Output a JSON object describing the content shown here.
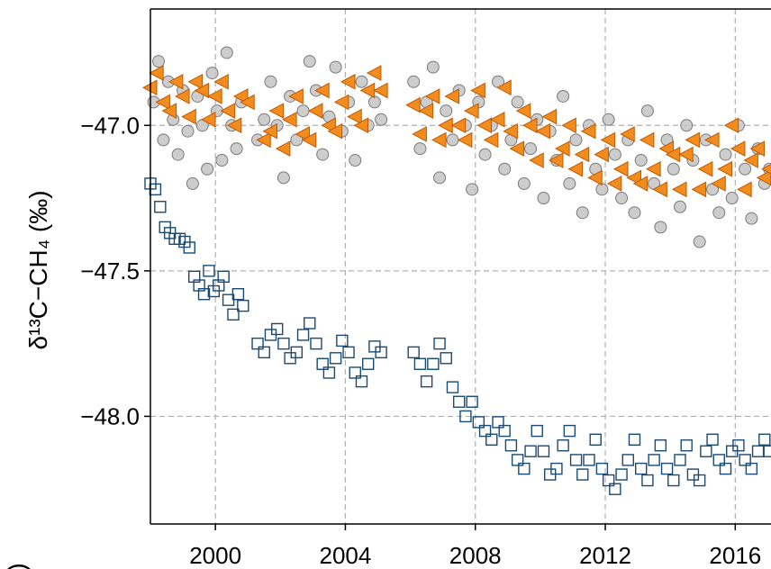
{
  "chart_data": {
    "type": "scatter",
    "title": "",
    "xlabel": "",
    "ylabel": "δ¹³C−CH₄ (‰)",
    "xlim": [
      1998.0,
      2017.1
    ],
    "ylim": [
      -48.37,
      -46.6
    ],
    "grid": true,
    "x_ticks": [
      2000,
      2004,
      2008,
      2012,
      2016
    ],
    "x_tick_labels": [
      "2000",
      "2004",
      "2008",
      "2012",
      "2016"
    ],
    "y_ticks": [
      -47.0,
      -47.5,
      -48.0
    ],
    "y_tick_labels": [
      "−47.0",
      "−47.5",
      "−48.0"
    ],
    "series": [
      {
        "marker": "circle",
        "color": "#c8c8c8",
        "edge": "#7a7a7a",
        "x": [
          1998.1,
          1998.25,
          1998.4,
          1998.55,
          1998.7,
          1998.85,
          1999.0,
          1999.15,
          1999.3,
          1999.45,
          1999.6,
          1999.75,
          1999.9,
          2000.05,
          2000.2,
          2000.35,
          2000.5,
          2000.65,
          2000.8,
          2001.3,
          2001.5,
          2001.7,
          2001.9,
          2002.1,
          2002.3,
          2002.5,
          2002.7,
          2002.9,
          2003.1,
          2003.3,
          2003.5,
          2003.7,
          2003.9,
          2004.1,
          2004.3,
          2004.5,
          2004.7,
          2004.9,
          2005.1,
          2006.1,
          2006.3,
          2006.5,
          2006.7,
          2006.9,
          2007.1,
          2007.3,
          2007.5,
          2007.7,
          2007.9,
          2008.1,
          2008.3,
          2008.5,
          2008.7,
          2008.9,
          2009.1,
          2009.3,
          2009.5,
          2009.7,
          2009.9,
          2010.1,
          2010.3,
          2010.5,
          2010.7,
          2010.9,
          2011.1,
          2011.3,
          2011.5,
          2011.7,
          2011.9,
          2012.1,
          2012.3,
          2012.5,
          2012.7,
          2012.9,
          2013.1,
          2013.3,
          2013.5,
          2013.7,
          2013.9,
          2014.1,
          2014.3,
          2014.5,
          2014.7,
          2014.9,
          2015.1,
          2015.3,
          2015.5,
          2015.7,
          2015.9,
          2016.1,
          2016.3,
          2016.5,
          2016.7,
          2016.9,
          2017.05
        ],
        "y": [
          -46.92,
          -46.78,
          -47.05,
          -46.85,
          -46.98,
          -47.1,
          -46.88,
          -47.02,
          -47.2,
          -46.9,
          -47.0,
          -47.15,
          -46.82,
          -46.95,
          -47.12,
          -46.75,
          -47.0,
          -47.08,
          -46.92,
          -47.05,
          -46.98,
          -46.85,
          -47.0,
          -47.18,
          -46.9,
          -47.05,
          -46.95,
          -46.78,
          -46.88,
          -47.1,
          -46.97,
          -46.8,
          -47.02,
          -46.92,
          -47.12,
          -46.85,
          -47.0,
          -46.92,
          -46.98,
          -46.85,
          -47.08,
          -46.92,
          -46.8,
          -47.18,
          -46.95,
          -47.05,
          -46.88,
          -47.0,
          -47.22,
          -46.92,
          -47.1,
          -47.0,
          -46.85,
          -47.15,
          -47.05,
          -46.92,
          -47.2,
          -47.08,
          -46.98,
          -47.25,
          -47.02,
          -47.12,
          -46.9,
          -47.2,
          -47.05,
          -47.3,
          -47.0,
          -47.15,
          -47.22,
          -46.98,
          -47.1,
          -47.25,
          -47.05,
          -47.3,
          -47.12,
          -46.95,
          -47.2,
          -47.35,
          -47.05,
          -47.15,
          -47.28,
          -47.0,
          -47.12,
          -47.4,
          -47.05,
          -47.22,
          -47.3,
          -47.1,
          -47.25,
          -47.0,
          -47.15,
          -47.32,
          -47.08,
          -47.2,
          -47.15
        ]
      },
      {
        "marker": "triangle-left",
        "color": "#f28c1e",
        "edge": "#c05a00",
        "x": [
          1998.0,
          1998.2,
          1998.4,
          1998.6,
          1998.8,
          1999.0,
          1999.2,
          1999.4,
          1999.6,
          1999.8,
          2000.0,
          2000.2,
          2000.4,
          2000.6,
          2000.8,
          2001.0,
          2001.5,
          2001.7,
          2001.9,
          2002.1,
          2002.3,
          2002.5,
          2002.7,
          2002.9,
          2003.1,
          2003.3,
          2003.5,
          2003.7,
          2003.9,
          2004.1,
          2004.3,
          2004.5,
          2004.7,
          2004.9,
          2005.1,
          2006.1,
          2006.3,
          2006.5,
          2006.7,
          2006.9,
          2007.1,
          2007.3,
          2007.5,
          2007.7,
          2007.9,
          2008.1,
          2008.3,
          2008.5,
          2008.7,
          2008.9,
          2009.1,
          2009.3,
          2009.5,
          2009.7,
          2009.9,
          2010.1,
          2010.3,
          2010.5,
          2010.7,
          2010.9,
          2011.1,
          2011.3,
          2011.5,
          2011.7,
          2011.9,
          2012.1,
          2012.3,
          2012.5,
          2012.7,
          2012.9,
          2013.1,
          2013.3,
          2013.5,
          2013.7,
          2013.9,
          2014.1,
          2014.3,
          2014.5,
          2014.7,
          2014.9,
          2015.1,
          2015.3,
          2015.5,
          2015.7,
          2015.9,
          2016.1,
          2016.3,
          2016.5,
          2016.7,
          2016.9,
          2017.05
        ],
        "y": [
          -46.87,
          -46.82,
          -46.92,
          -46.95,
          -46.85,
          -46.9,
          -46.97,
          -46.85,
          -46.88,
          -46.98,
          -46.9,
          -46.85,
          -46.95,
          -47.0,
          -46.9,
          -46.92,
          -47.05,
          -47.02,
          -46.95,
          -47.08,
          -46.98,
          -46.9,
          -47.03,
          -47.05,
          -46.95,
          -46.88,
          -47.0,
          -47.02,
          -46.92,
          -46.85,
          -46.97,
          -47.0,
          -46.88,
          -46.82,
          -46.88,
          -46.93,
          -47.03,
          -46.95,
          -46.9,
          -47.05,
          -47.0,
          -46.9,
          -47.0,
          -47.05,
          -46.95,
          -46.88,
          -47.0,
          -47.05,
          -46.98,
          -46.87,
          -47.02,
          -47.08,
          -46.95,
          -47.0,
          -47.12,
          -47.02,
          -46.97,
          -47.12,
          -47.08,
          -47.0,
          -47.15,
          -47.1,
          -47.02,
          -47.18,
          -47.1,
          -47.05,
          -47.2,
          -47.15,
          -47.03,
          -47.18,
          -47.2,
          -47.05,
          -47.15,
          -47.22,
          -47.08,
          -47.1,
          -47.22,
          -47.1,
          -47.05,
          -47.22,
          -47.15,
          -47.05,
          -47.2,
          -47.15,
          -47.0,
          -47.08,
          -47.22,
          -47.12,
          -47.08,
          -47.18,
          -47.15
        ]
      },
      {
        "marker": "square-open",
        "color": "#1a4a72",
        "x": [
          1998.0,
          1998.15,
          1998.3,
          1998.45,
          1998.6,
          1998.75,
          1998.9,
          1999.05,
          1999.2,
          1999.35,
          1999.5,
          1999.65,
          1999.8,
          1999.95,
          2000.1,
          2000.25,
          2000.4,
          2000.55,
          2000.7,
          2000.85,
          2001.3,
          2001.5,
          2001.7,
          2001.9,
          2002.1,
          2002.3,
          2002.5,
          2002.7,
          2002.9,
          2003.1,
          2003.3,
          2003.5,
          2003.7,
          2003.9,
          2004.1,
          2004.3,
          2004.5,
          2004.7,
          2004.9,
          2005.1,
          2006.1,
          2006.3,
          2006.5,
          2006.7,
          2006.9,
          2007.1,
          2007.3,
          2007.5,
          2007.7,
          2007.9,
          2008.1,
          2008.3,
          2008.5,
          2008.7,
          2008.9,
          2009.1,
          2009.3,
          2009.5,
          2009.7,
          2009.9,
          2010.1,
          2010.3,
          2010.5,
          2010.7,
          2010.9,
          2011.1,
          2011.3,
          2011.5,
          2011.7,
          2011.9,
          2012.1,
          2012.3,
          2012.5,
          2012.7,
          2012.9,
          2013.1,
          2013.3,
          2013.5,
          2013.7,
          2013.9,
          2014.1,
          2014.3,
          2014.5,
          2014.7,
          2014.9,
          2015.1,
          2015.3,
          2015.5,
          2015.7,
          2015.9,
          2016.1,
          2016.3,
          2016.5,
          2016.7,
          2016.9,
          2017.05
        ],
        "y": [
          -47.2,
          -47.22,
          -47.28,
          -47.35,
          -47.37,
          -47.39,
          -47.39,
          -47.4,
          -47.42,
          -47.52,
          -47.55,
          -47.58,
          -47.5,
          -47.57,
          -47.55,
          -47.52,
          -47.6,
          -47.65,
          -47.58,
          -47.62,
          -47.75,
          -47.78,
          -47.72,
          -47.7,
          -47.75,
          -47.8,
          -47.78,
          -47.72,
          -47.68,
          -47.75,
          -47.82,
          -47.85,
          -47.8,
          -47.74,
          -47.78,
          -47.85,
          -47.88,
          -47.82,
          -47.76,
          -47.78,
          -47.78,
          -47.82,
          -47.88,
          -47.82,
          -47.75,
          -47.8,
          -47.9,
          -47.95,
          -48.0,
          -47.95,
          -48.02,
          -48.05,
          -48.08,
          -48.02,
          -48.05,
          -48.1,
          -48.15,
          -48.18,
          -48.12,
          -48.05,
          -48.12,
          -48.2,
          -48.18,
          -48.1,
          -48.05,
          -48.15,
          -48.2,
          -48.15,
          -48.08,
          -48.18,
          -48.22,
          -48.25,
          -48.2,
          -48.15,
          -48.08,
          -48.18,
          -48.22,
          -48.15,
          -48.1,
          -48.18,
          -48.22,
          -48.15,
          -48.1,
          -48.2,
          -48.22,
          -48.12,
          -48.08,
          -48.15,
          -48.18,
          -48.12,
          -48.1,
          -48.15,
          -48.18,
          -48.12,
          -48.08,
          -48.12
        ]
      }
    ]
  },
  "colors": {
    "grid": "#b0b0b0",
    "axis": "#000000"
  },
  "partial_bottom_label": ")"
}
